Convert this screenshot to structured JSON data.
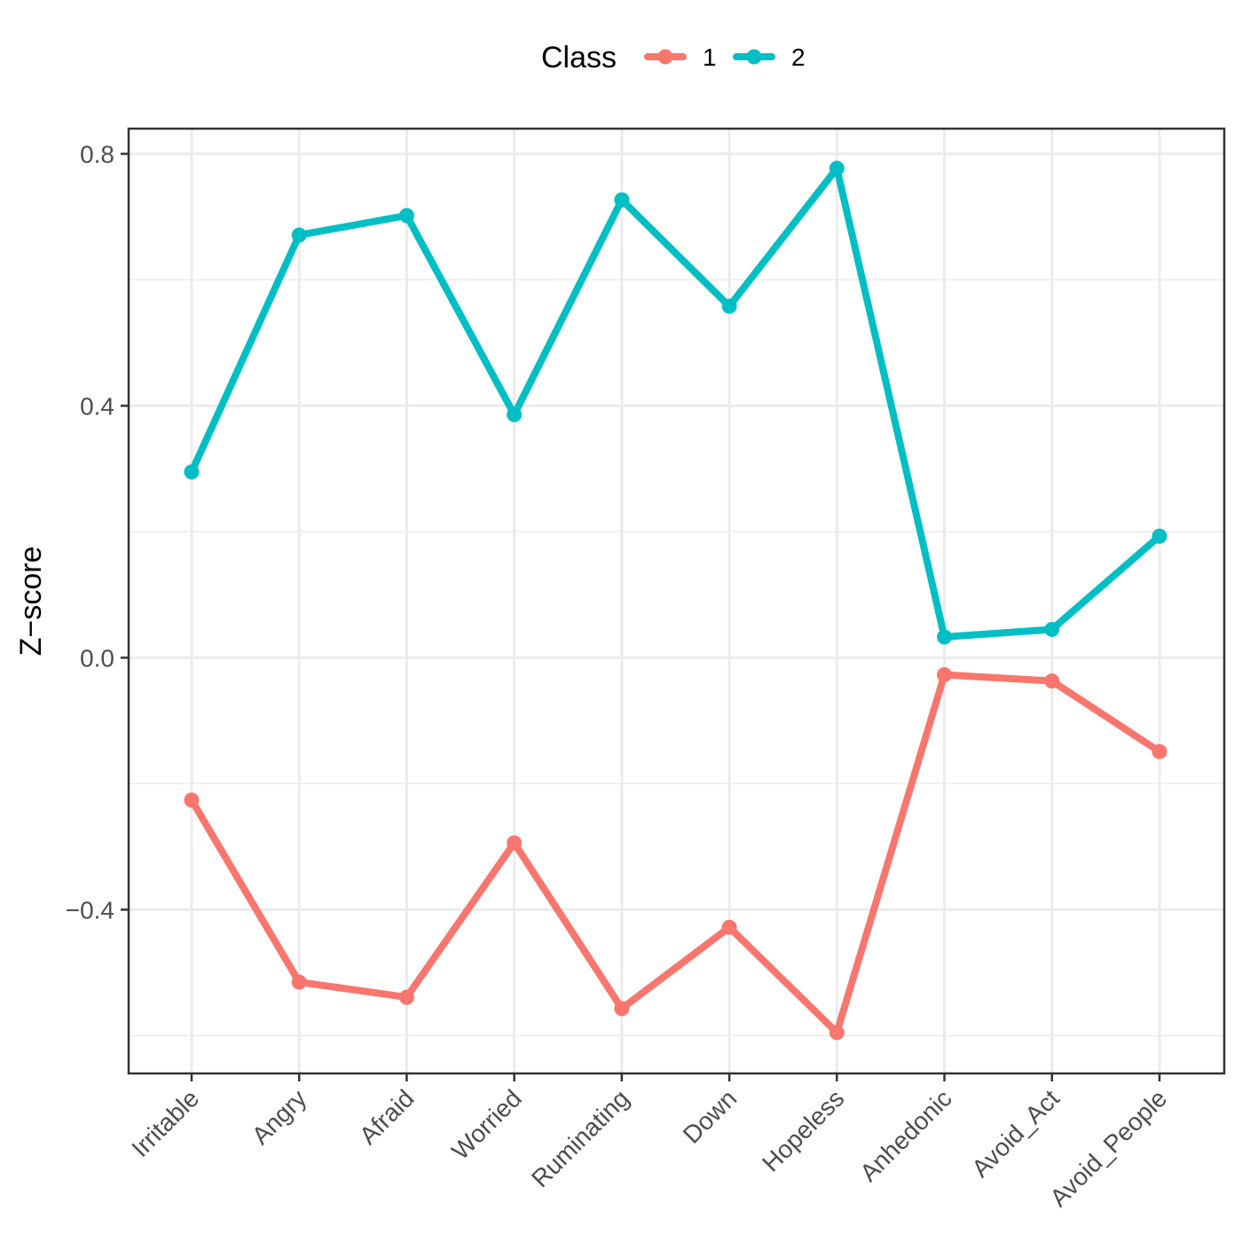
{
  "chart_data": {
    "type": "line",
    "ylabel": "Z−score",
    "xlabel": "",
    "categories": [
      "Irritable",
      "Angry",
      "Afraid",
      "Worried",
      "Ruminating",
      "Down",
      "Hopeless",
      "Anhedonic",
      "Avoid_Act",
      "Avoid_People"
    ],
    "ylim": [
      -0.66,
      0.84
    ],
    "yticks": [
      0.8,
      0.4,
      0.0,
      -0.4
    ],
    "ytick_labels": [
      "0.8",
      "0.4",
      "0.0",
      "−0.4"
    ],
    "grid": true,
    "legend": {
      "title": "Class",
      "placement": "top"
    },
    "series": [
      {
        "name": "1",
        "color": "#F8766D",
        "values": [
          -0.226,
          -0.515,
          -0.539,
          -0.294,
          -0.557,
          -0.428,
          -0.595,
          -0.027,
          -0.037,
          -0.149
        ]
      },
      {
        "name": "2",
        "color": "#00BFC4",
        "values": [
          0.295,
          0.671,
          0.702,
          0.386,
          0.727,
          0.558,
          0.777,
          0.033,
          0.045,
          0.193
        ]
      }
    ]
  }
}
